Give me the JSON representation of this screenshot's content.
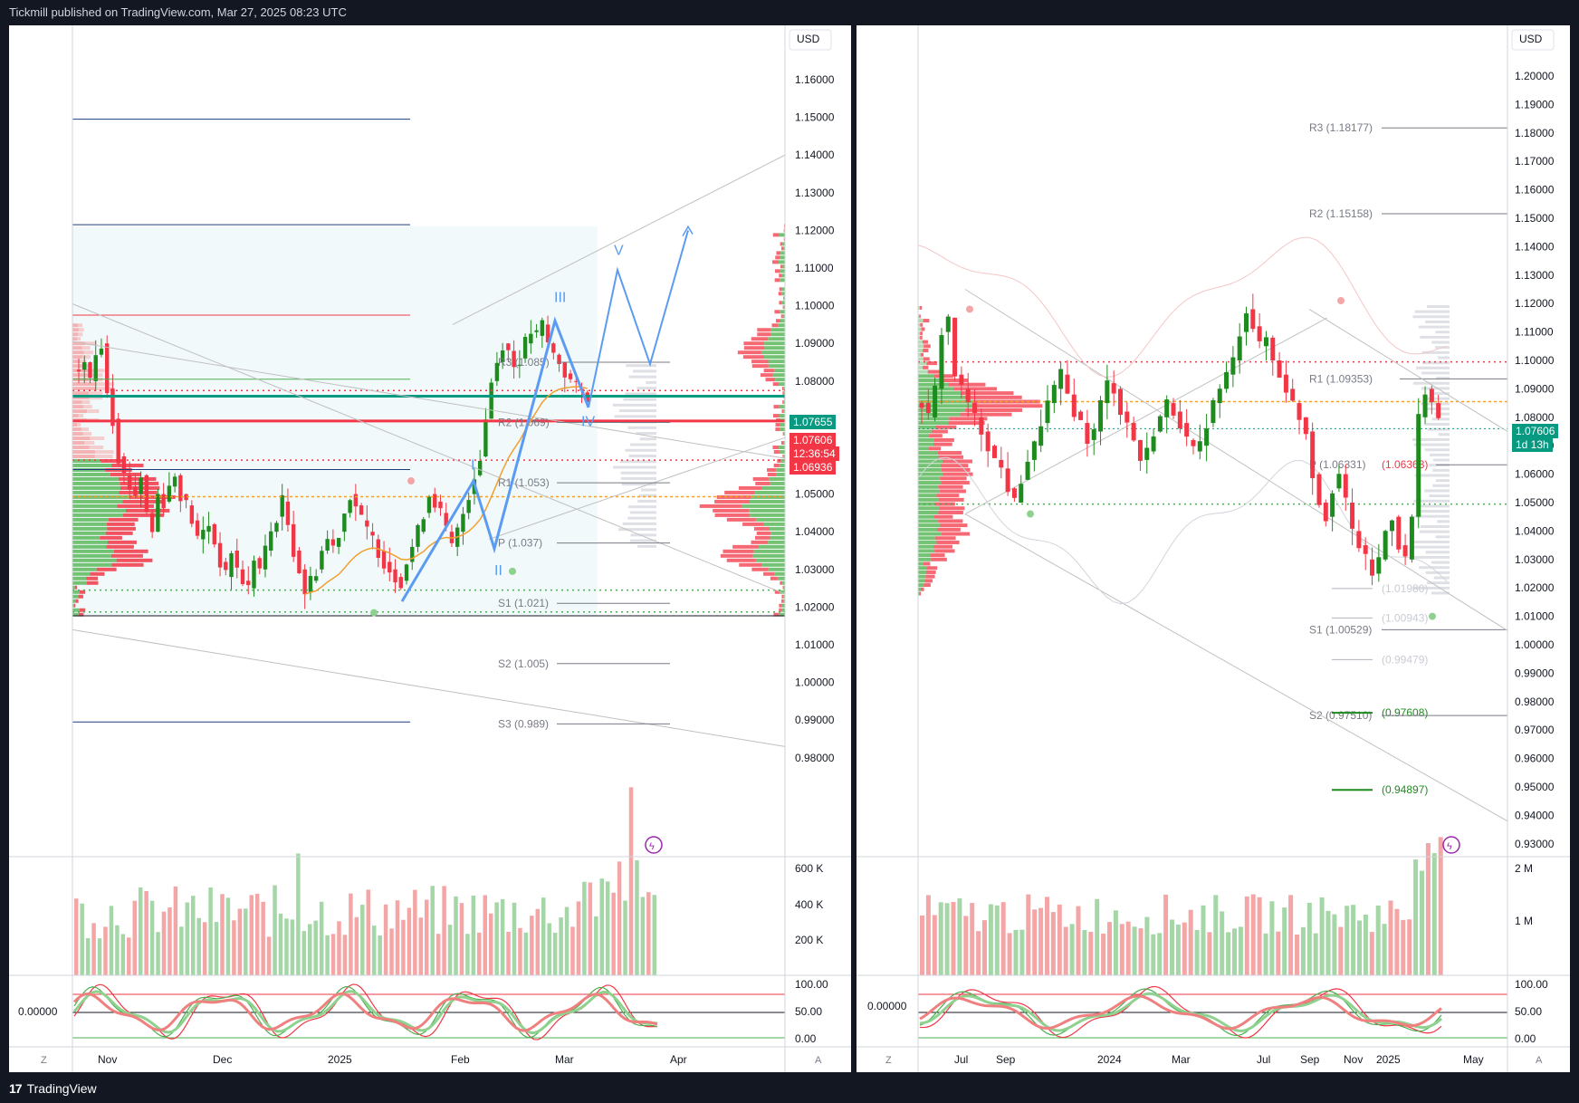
{
  "header": {
    "publisher_line": "Tickmill published on TradingView.com, Mar 27, 2025 08:23 UTC"
  },
  "footer": {
    "brand": "TradingView",
    "logo_glyph": "17"
  },
  "colors": {
    "up": "#089981",
    "up_candle": "#1e8b1e",
    "down": "#f23645",
    "accent": "#2962ff",
    "wave": "#5b9cf0",
    "ema": "#f0a030"
  },
  "left": {
    "currency": "USD",
    "time_labels": [
      "Nov",
      "Dec",
      "2025",
      "Feb",
      "Mar",
      "Apr"
    ],
    "z_label": "Z",
    "a_label": "A",
    "price_axis": [
      "1.16000",
      "1.15000",
      "1.14000",
      "1.13000",
      "1.12000",
      "1.11000",
      "1.10000",
      "1.09000",
      "1.08000",
      "1.07000",
      "1.06000",
      "1.05000",
      "1.04000",
      "1.03000",
      "1.02000",
      "1.01000",
      "1.00000",
      "0.99000",
      "0.98000"
    ],
    "volume_axis": [
      "600 K",
      "400 K",
      "200 K"
    ],
    "osc_axis": [
      "100.00",
      "50.00",
      "0.00"
    ],
    "osc_value": "0.00000",
    "pivots": [
      "R3 (1.085)",
      "R2 (1.069)",
      "R1 (1.053)",
      "P (1.037)",
      "S1 (1.021)",
      "S2 (1.005)",
      "S3 (0.989)"
    ],
    "waves": [
      "I",
      "II",
      "III",
      "IV",
      "V"
    ],
    "tags": {
      "price1": "1.07655",
      "price2": "1.07606",
      "countdown": "12:36:54",
      "price3": "1.06936"
    }
  },
  "right": {
    "currency": "USD",
    "time_labels": [
      "Jul",
      "Sep",
      "2024",
      "Mar",
      "Jul",
      "Sep",
      "Nov",
      "2025",
      "May"
    ],
    "z_label": "Z",
    "a_label": "A",
    "price_axis": [
      "1.20000",
      "1.19000",
      "1.18000",
      "1.17000",
      "1.16000",
      "1.15000",
      "1.14000",
      "1.13000",
      "1.12000",
      "1.11000",
      "1.10000",
      "1.09000",
      "1.08000",
      "1.07000",
      "1.06000",
      "1.05000",
      "1.04000",
      "1.03000",
      "1.02000",
      "1.01000",
      "1.00000",
      "0.99000",
      "0.98000",
      "0.97000",
      "0.96000",
      "0.95000",
      "0.94000",
      "0.93000"
    ],
    "volume_axis": [
      "2 M",
      "1 M"
    ],
    "osc_axis": [
      "100.00",
      "50.00",
      "0.00"
    ],
    "osc_value": "0.00000",
    "pivots": [
      "R3 (1.18177)",
      "R2 (1.15158)",
      "R1 (1.09353)",
      "P (1.06331)",
      "(1.06363)",
      "(1.01980)",
      "(1.00943)",
      "S1 (1.00529)",
      "(0.99479)",
      "S2 (0.97510)",
      "(0.97608)",
      "(0.94897)"
    ],
    "tags": {
      "price": "1.07606",
      "countdown": "1d 13h"
    }
  }
}
